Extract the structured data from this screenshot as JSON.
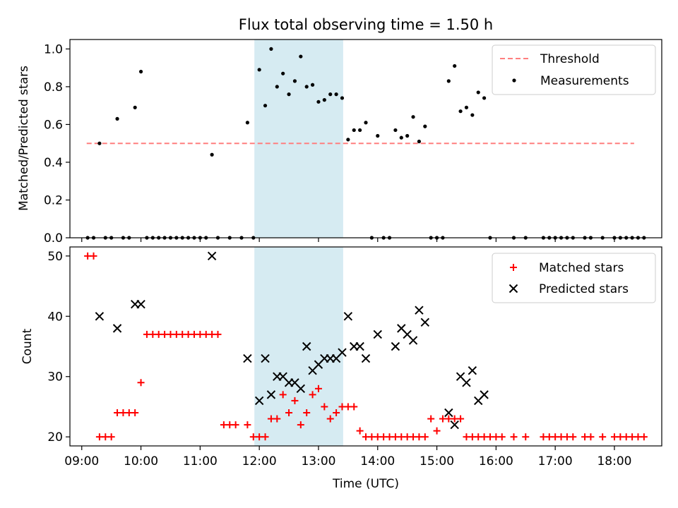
{
  "chart_data": [
    {
      "type": "scatter",
      "title": "Flux total observing time = 1.50 h",
      "ylabel": "Matched/Predicted stars",
      "xlabel": "",
      "xlim": [
        "08:48",
        "18:48"
      ],
      "ylim": [
        0,
        1.05
      ],
      "yticks": [
        "0.0",
        "0.2",
        "0.4",
        "0.6",
        "0.8",
        "1.0"
      ],
      "shaded_interval": [
        "11:55",
        "13:25"
      ],
      "legend_position": "upper right",
      "threshold": {
        "name": "Threshold",
        "value": 0.5,
        "x_start": "09:05",
        "x_end": "18:20",
        "color": "#ff7f7f"
      },
      "series": [
        {
          "name": "Measurements",
          "color": "#000000",
          "marker": "dot",
          "points": [
            [
              "09:06",
              0
            ],
            [
              "09:12",
              0
            ],
            [
              "09:18",
              0.5
            ],
            [
              "09:24",
              0
            ],
            [
              "09:30",
              0
            ],
            [
              "09:36",
              0.63
            ],
            [
              "09:42",
              0
            ],
            [
              "09:48",
              0
            ],
            [
              "09:54",
              0.69
            ],
            [
              "10:00",
              0.88
            ],
            [
              "10:06",
              0
            ],
            [
              "10:12",
              0
            ],
            [
              "10:18",
              0
            ],
            [
              "10:24",
              0
            ],
            [
              "10:30",
              0
            ],
            [
              "10:36",
              0
            ],
            [
              "10:42",
              0
            ],
            [
              "10:48",
              0
            ],
            [
              "10:54",
              0
            ],
            [
              "11:00",
              0
            ],
            [
              "11:06",
              0
            ],
            [
              "11:12",
              0.44
            ],
            [
              "11:18",
              0
            ],
            [
              "11:30",
              0
            ],
            [
              "11:42",
              0
            ],
            [
              "11:48",
              0.61
            ],
            [
              "11:54",
              0
            ],
            [
              "12:00",
              0.89
            ],
            [
              "12:06",
              0.7
            ],
            [
              "12:12",
              1.0
            ],
            [
              "12:18",
              0.8
            ],
            [
              "12:24",
              0.87
            ],
            [
              "12:30",
              0.76
            ],
            [
              "12:36",
              0.83
            ],
            [
              "12:42",
              0.96
            ],
            [
              "12:48",
              0.8
            ],
            [
              "12:54",
              0.81
            ],
            [
              "13:00",
              0.72
            ],
            [
              "13:06",
              0.73
            ],
            [
              "13:12",
              0.76
            ],
            [
              "13:18",
              0.76
            ],
            [
              "13:24",
              0.74
            ],
            [
              "13:30",
              0.52
            ],
            [
              "13:36",
              0.57
            ],
            [
              "13:42",
              0.57
            ],
            [
              "13:48",
              0.61
            ],
            [
              "13:54",
              0
            ],
            [
              "14:00",
              0.54
            ],
            [
              "14:06",
              0
            ],
            [
              "14:12",
              0
            ],
            [
              "14:18",
              0.57
            ],
            [
              "14:24",
              0.53
            ],
            [
              "14:30",
              0.54
            ],
            [
              "14:36",
              0.64
            ],
            [
              "14:42",
              0.51
            ],
            [
              "14:48",
              0.59
            ],
            [
              "14:54",
              0
            ],
            [
              "15:00",
              0
            ],
            [
              "15:06",
              0
            ],
            [
              "15:12",
              0.83
            ],
            [
              "15:18",
              0.91
            ],
            [
              "15:24",
              0.67
            ],
            [
              "15:30",
              0.69
            ],
            [
              "15:36",
              0.65
            ],
            [
              "15:42",
              0.77
            ],
            [
              "15:48",
              0.74
            ],
            [
              "15:54",
              0
            ],
            [
              "16:18",
              0
            ],
            [
              "16:30",
              0
            ],
            [
              "16:48",
              0
            ],
            [
              "16:54",
              0
            ],
            [
              "17:00",
              0
            ],
            [
              "17:06",
              0
            ],
            [
              "17:12",
              0
            ],
            [
              "17:18",
              0
            ],
            [
              "17:30",
              0
            ],
            [
              "17:36",
              0
            ],
            [
              "17:48",
              0
            ],
            [
              "18:00",
              0
            ],
            [
              "18:06",
              0
            ],
            [
              "18:12",
              0
            ],
            [
              "18:18",
              0
            ],
            [
              "18:24",
              0
            ],
            [
              "18:30",
              0
            ]
          ]
        }
      ]
    },
    {
      "type": "scatter",
      "title": "",
      "xlabel": "Time (UTC)",
      "ylabel": "Count",
      "xlim": [
        "08:48",
        "18:48"
      ],
      "xticks": [
        "09:00",
        "10:00",
        "11:00",
        "12:00",
        "13:00",
        "14:00",
        "15:00",
        "16:00",
        "17:00",
        "18:00"
      ],
      "ylim": [
        18.5,
        51.5
      ],
      "yticks": [
        "20",
        "30",
        "40",
        "50"
      ],
      "shaded_interval": [
        "11:55",
        "13:25"
      ],
      "legend_position": "upper right",
      "series": [
        {
          "name": "Matched stars",
          "color": "#ff0000",
          "marker": "plus",
          "points": [
            [
              "09:06",
              50
            ],
            [
              "09:12",
              50
            ],
            [
              "09:18",
              20
            ],
            [
              "09:24",
              20
            ],
            [
              "09:30",
              20
            ],
            [
              "09:36",
              24
            ],
            [
              "09:42",
              24
            ],
            [
              "09:48",
              24
            ],
            [
              "09:54",
              24
            ],
            [
              "10:00",
              29
            ],
            [
              "10:06",
              37
            ],
            [
              "10:12",
              37
            ],
            [
              "10:18",
              37
            ],
            [
              "10:24",
              37
            ],
            [
              "10:30",
              37
            ],
            [
              "10:36",
              37
            ],
            [
              "10:42",
              37
            ],
            [
              "10:48",
              37
            ],
            [
              "10:54",
              37
            ],
            [
              "11:00",
              37
            ],
            [
              "11:06",
              37
            ],
            [
              "11:12",
              37
            ],
            [
              "11:18",
              37
            ],
            [
              "11:24",
              22
            ],
            [
              "11:30",
              22
            ],
            [
              "11:36",
              22
            ],
            [
              "11:48",
              22
            ],
            [
              "11:54",
              20
            ],
            [
              "12:00",
              20
            ],
            [
              "12:06",
              20
            ],
            [
              "12:12",
              23
            ],
            [
              "12:18",
              23
            ],
            [
              "12:24",
              27
            ],
            [
              "12:30",
              24
            ],
            [
              "12:36",
              26
            ],
            [
              "12:42",
              22
            ],
            [
              "12:48",
              24
            ],
            [
              "12:54",
              27
            ],
            [
              "13:00",
              28
            ],
            [
              "13:06",
              25
            ],
            [
              "13:12",
              23
            ],
            [
              "13:18",
              24
            ],
            [
              "13:24",
              25
            ],
            [
              "13:30",
              25
            ],
            [
              "13:36",
              25
            ],
            [
              "13:42",
              21
            ],
            [
              "13:48",
              20
            ],
            [
              "13:54",
              20
            ],
            [
              "14:00",
              20
            ],
            [
              "14:06",
              20
            ],
            [
              "14:12",
              20
            ],
            [
              "14:18",
              20
            ],
            [
              "14:24",
              20
            ],
            [
              "14:30",
              20
            ],
            [
              "14:36",
              20
            ],
            [
              "14:42",
              20
            ],
            [
              "14:48",
              20
            ],
            [
              "14:54",
              23
            ],
            [
              "15:00",
              21
            ],
            [
              "15:06",
              23
            ],
            [
              "15:12",
              23
            ],
            [
              "15:18",
              23
            ],
            [
              "15:24",
              23
            ],
            [
              "15:30",
              20
            ],
            [
              "15:36",
              20
            ],
            [
              "15:42",
              20
            ],
            [
              "15:48",
              20
            ],
            [
              "15:54",
              20
            ],
            [
              "16:00",
              20
            ],
            [
              "16:06",
              20
            ],
            [
              "16:18",
              20
            ],
            [
              "16:30",
              20
            ],
            [
              "16:48",
              20
            ],
            [
              "16:54",
              20
            ],
            [
              "17:00",
              20
            ],
            [
              "17:06",
              20
            ],
            [
              "17:12",
              20
            ],
            [
              "17:18",
              20
            ],
            [
              "17:30",
              20
            ],
            [
              "17:36",
              20
            ],
            [
              "17:48",
              20
            ],
            [
              "18:00",
              20
            ],
            [
              "18:06",
              20
            ],
            [
              "18:12",
              20
            ],
            [
              "18:18",
              20
            ],
            [
              "18:24",
              20
            ],
            [
              "18:30",
              20
            ]
          ]
        },
        {
          "name": "Predicted stars",
          "color": "#000000",
          "marker": "x",
          "points": [
            [
              "09:18",
              40
            ],
            [
              "09:36",
              38
            ],
            [
              "09:54",
              42
            ],
            [
              "10:00",
              42
            ],
            [
              "11:12",
              50
            ],
            [
              "11:48",
              33
            ],
            [
              "12:00",
              26
            ],
            [
              "12:06",
              33
            ],
            [
              "12:12",
              27
            ],
            [
              "12:18",
              30
            ],
            [
              "12:24",
              30
            ],
            [
              "12:30",
              29
            ],
            [
              "12:36",
              29
            ],
            [
              "12:42",
              28
            ],
            [
              "12:48",
              35
            ],
            [
              "12:54",
              31
            ],
            [
              "13:00",
              32
            ],
            [
              "13:06",
              33
            ],
            [
              "13:12",
              33
            ],
            [
              "13:18",
              33
            ],
            [
              "13:24",
              34
            ],
            [
              "13:30",
              40
            ],
            [
              "13:36",
              35
            ],
            [
              "13:42",
              35
            ],
            [
              "13:48",
              33
            ],
            [
              "14:00",
              37
            ],
            [
              "14:18",
              35
            ],
            [
              "14:24",
              38
            ],
            [
              "14:30",
              37
            ],
            [
              "14:36",
              36
            ],
            [
              "14:42",
              41
            ],
            [
              "14:48",
              39
            ],
            [
              "15:12",
              24
            ],
            [
              "15:18",
              22
            ],
            [
              "15:24",
              30
            ],
            [
              "15:30",
              29
            ],
            [
              "15:36",
              31
            ],
            [
              "15:42",
              26
            ],
            [
              "15:48",
              27
            ]
          ]
        }
      ]
    }
  ]
}
